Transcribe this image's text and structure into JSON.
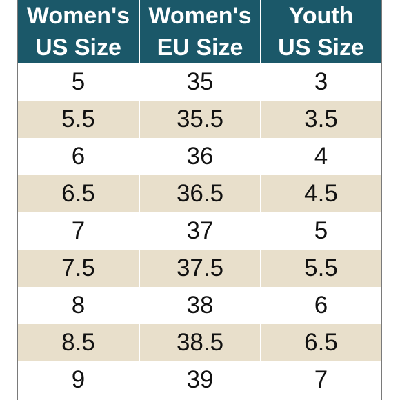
{
  "headers": [
    {
      "line1": "Women's",
      "line2": "US Size"
    },
    {
      "line1": "Women's",
      "line2": "EU Size"
    },
    {
      "line1": "Youth",
      "line2": "US Size"
    }
  ],
  "rows": [
    [
      "5",
      "35",
      "3"
    ],
    [
      "5.5",
      "35.5",
      "3.5"
    ],
    [
      "6",
      "36",
      "4"
    ],
    [
      "6.5",
      "36.5",
      "4.5"
    ],
    [
      "7",
      "37",
      "5"
    ],
    [
      "7.5",
      "37.5",
      "5.5"
    ],
    [
      "8",
      "38",
      "6"
    ],
    [
      "8.5",
      "38.5",
      "6.5"
    ],
    [
      "9",
      "39",
      "7"
    ]
  ],
  "colors": {
    "header_bg": "#1b5869",
    "stripe": "#e8dfcb"
  }
}
